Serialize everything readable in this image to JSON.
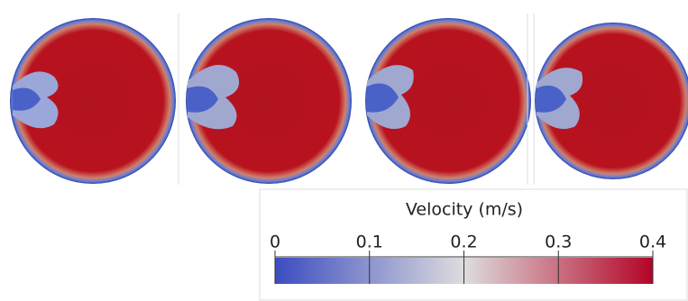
{
  "colorbar": {
    "title": "Velocity (m/s)",
    "range": [
      0,
      0.4
    ],
    "ticks": [
      0,
      0.1,
      0.2,
      0.3,
      0.4
    ],
    "colormap": [
      "#3b4cc0",
      "#dddddd",
      "#b40426"
    ]
  }
}
